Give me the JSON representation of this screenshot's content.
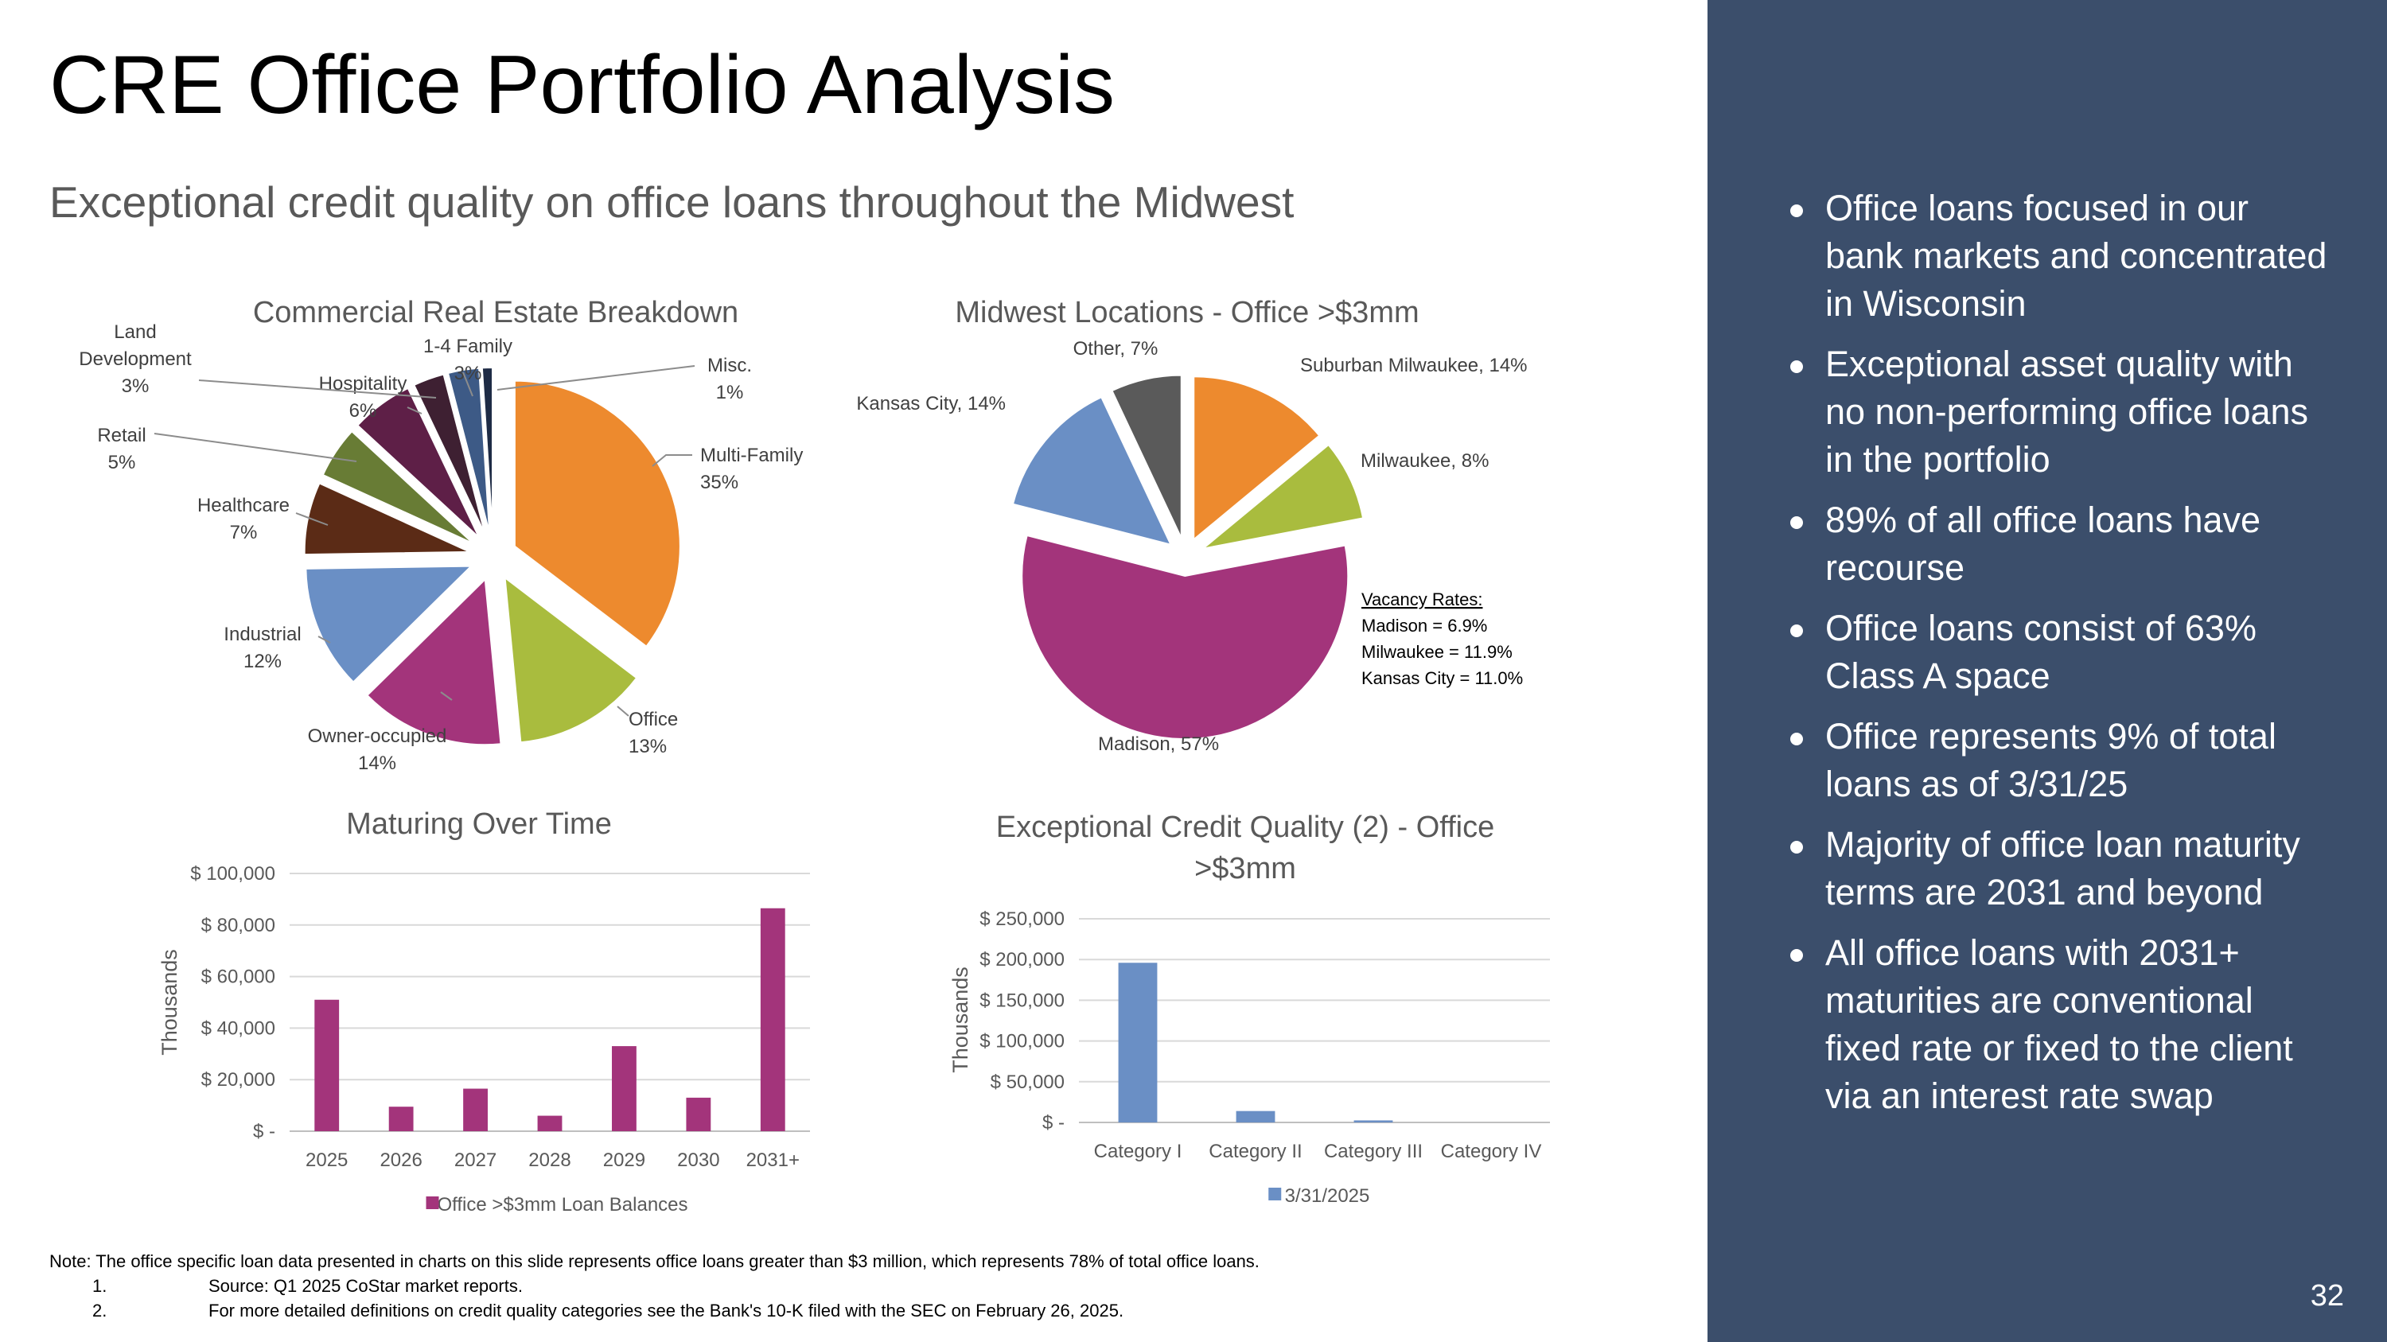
{
  "slide": {
    "title": "CRE Office Portfolio Analysis",
    "subtitle": "Exceptional credit quality on office loans throughout the Midwest",
    "page_number": "32"
  },
  "sidebar": {
    "bullets": [
      "Office loans focused in our bank markets and concentrated in Wisconsin",
      "Exceptional asset quality with no non-performing office loans in the portfolio",
      "89% of all office loans have recourse",
      "Office loans consist of 63% Class A space",
      "Office represents 9% of total loans as of 3/31/25",
      "Majority of office loan maturity terms are 2031 and beyond",
      "All office loans with 2031+ maturities are conventional fixed rate or fixed to the client via an interest rate swap"
    ]
  },
  "vacancy": {
    "title": "Vacancy Rates:",
    "lines": [
      "Madison = 6.9%",
      "Milwaukee = 11.9%",
      "Kansas City = 11.0%"
    ]
  },
  "notes": {
    "note": "Note: The office specific loan data presented in charts on this slide represents office loans greater than $3 million, which represents 78% of total office loans.",
    "footnotes": [
      {
        "num": "1.",
        "text": "Source: Q1 2025 CoStar market reports."
      },
      {
        "num": "2.",
        "text": "For more detailed definitions on credit quality categories see the Bank's 10-K filed with the SEC on February 26, 2025."
      }
    ]
  },
  "colors": {
    "sidebar_bg": "#3b4e6b",
    "bar_magenta": "#a3347b",
    "bar_blue": "#6a8fc5"
  },
  "chart_data": [
    {
      "type": "pie",
      "title": "Commercial Real Estate Breakdown",
      "slices": [
        {
          "label": "Multi-Family",
          "value": 35,
          "display": "35%",
          "color": "#ed8a2e"
        },
        {
          "label": "Office",
          "value": 13,
          "display": "13%",
          "color": "#a9bc3e"
        },
        {
          "label": "Owner-occupied",
          "value": 14,
          "display": "14%",
          "color": "#a3347b"
        },
        {
          "label": "Industrial",
          "value": 12,
          "display": "12%",
          "color": "#6a8fc5"
        },
        {
          "label": "Healthcare",
          "value": 7,
          "display": "7%",
          "color": "#5b2b16"
        },
        {
          "label": "Retail",
          "value": 5,
          "display": "5%",
          "color": "#687c35"
        },
        {
          "label": "Hospitality",
          "value": 6,
          "display": "6%",
          "color": "#5e1f47"
        },
        {
          "label": "Land Development",
          "value": 3,
          "display": "3%",
          "color": "#3e2032"
        },
        {
          "label": "1-4 Family",
          "value": 3,
          "display": "3%",
          "color": "#3d5a86"
        },
        {
          "label": "Misc.",
          "value": 1,
          "display": "1%",
          "color": "#1e2b45"
        }
      ]
    },
    {
      "type": "pie",
      "title": "Midwest Locations - Office >$3mm",
      "slices": [
        {
          "label": "Suburban Milwaukee",
          "value": 14,
          "display": "14%",
          "color": "#ed8a2e"
        },
        {
          "label": "Milwaukee",
          "value": 8,
          "display": "8%",
          "color": "#a9bc3e"
        },
        {
          "label": "Madison",
          "value": 57,
          "display": "57%",
          "color": "#a3347b"
        },
        {
          "label": "Kansas City",
          "value": 14,
          "display": "14%",
          "color": "#6a8fc5"
        },
        {
          "label": "Other",
          "value": 7,
          "display": "7%",
          "color": "#5a5a5a"
        }
      ]
    },
    {
      "type": "bar",
      "title": "Maturing Over Time",
      "ylabel": "Thousands",
      "ylim": [
        0,
        100000
      ],
      "yticks": [
        "$ -",
        "$ 20,000",
        "$ 40,000",
        "$ 60,000",
        "$ 80,000",
        "$ 100,000"
      ],
      "categories": [
        "2025",
        "2026",
        "2027",
        "2028",
        "2029",
        "2030",
        "2031+"
      ],
      "series": [
        {
          "name": "Office >$3mm Loan Balances",
          "values": [
            51000,
            9500,
            16500,
            6000,
            33000,
            13000,
            86500
          ],
          "color": "#a3347b"
        }
      ],
      "grid": true,
      "legend": "bottom"
    },
    {
      "type": "bar",
      "title": "Exceptional Credit Quality (2) - Office >$3mm",
      "title_lines": [
        "Exceptional Credit Quality (2) - Office",
        ">$3mm"
      ],
      "ylabel": "Thousands",
      "ylim": [
        0,
        250000
      ],
      "yticks": [
        "$ -",
        "$ 50,000",
        "$ 100,000",
        "$ 150,000",
        "$ 200,000",
        "$ 250,000"
      ],
      "categories": [
        "Category I",
        "Category II",
        "Category III",
        "Category IV"
      ],
      "series": [
        {
          "name": "3/31/2025",
          "values": [
            196000,
            14000,
            2500,
            0
          ],
          "color": "#6a8fc5"
        }
      ],
      "grid": true,
      "legend": "bottom"
    }
  ]
}
